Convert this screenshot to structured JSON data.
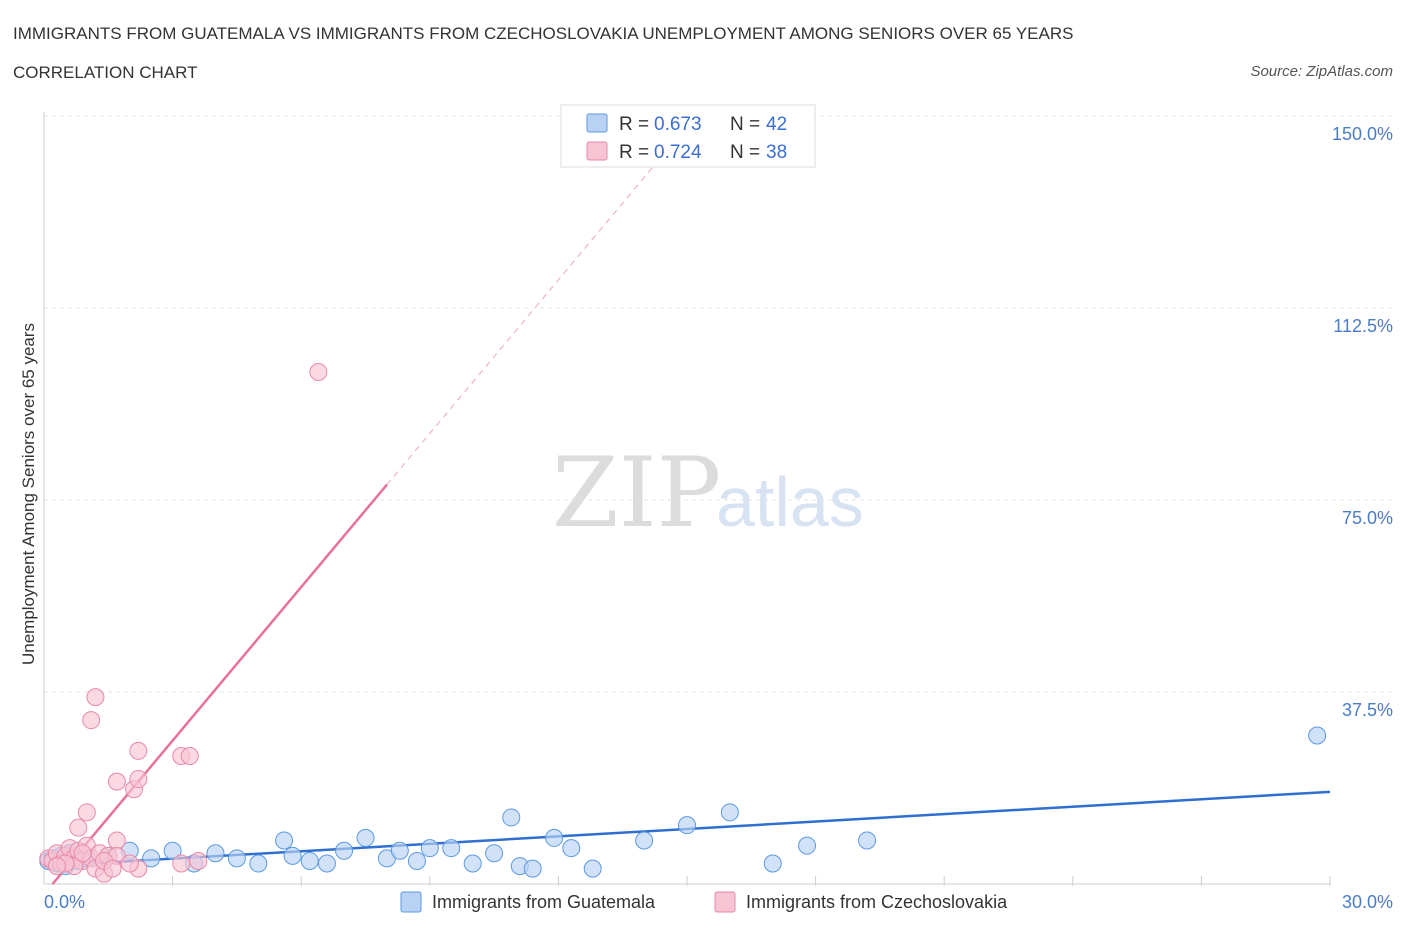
{
  "title": "IMMIGRANTS FROM GUATEMALA VS IMMIGRANTS FROM CZECHOSLOVAKIA UNEMPLOYMENT AMONG SENIORS OVER 65 YEARS",
  "subtitle": "CORRELATION CHART",
  "source": "Source: ZipAtlas.com",
  "watermark": {
    "zip": "ZIP",
    "atlas": "atlas"
  },
  "legend": {
    "r_label": "R =",
    "n_label": "N =",
    "series": [
      {
        "r": "0.673",
        "n": "42"
      },
      {
        "r": "0.724",
        "n": "38"
      }
    ]
  },
  "chart_data": {
    "type": "scatter",
    "title": "IMMIGRANTS FROM GUATEMALA VS IMMIGRANTS FROM CZECHOSLOVAKIA UNEMPLOYMENT AMONG SENIORS OVER 65 YEARS",
    "xlabel": "",
    "ylabel": "Unemployment Among Seniors over 65 years",
    "xlim": [
      0,
      30
    ],
    "ylim": [
      0,
      150
    ],
    "x_tick_labels": [
      "0.0%",
      "30.0%"
    ],
    "y_ticks": [
      37.5,
      75,
      112.5,
      150
    ],
    "y_tick_labels": [
      "37.5%",
      "75.0%",
      "112.5%",
      "150.0%"
    ],
    "grid": true,
    "legend_position": "top-center",
    "series": [
      {
        "name": "Immigrants from Guatemala",
        "color": "#5b9ae0",
        "fill": "#b8d2f4",
        "points": [
          [
            0.1,
            4.5
          ],
          [
            0.2,
            5.0
          ],
          [
            0.3,
            4.0
          ],
          [
            0.4,
            5.5
          ],
          [
            0.5,
            3.5
          ],
          [
            0.6,
            6.0
          ],
          [
            0.8,
            4.5
          ],
          [
            1.0,
            5.0
          ],
          [
            1.5,
            5.5
          ],
          [
            2.0,
            6.5
          ],
          [
            2.5,
            5.0
          ],
          [
            3.0,
            6.5
          ],
          [
            3.5,
            4.0
          ],
          [
            4.0,
            6.0
          ],
          [
            4.5,
            5.0
          ],
          [
            5.0,
            4.0
          ],
          [
            5.6,
            8.5
          ],
          [
            5.8,
            5.5
          ],
          [
            6.2,
            4.5
          ],
          [
            6.6,
            4.0
          ],
          [
            7.0,
            6.5
          ],
          [
            7.5,
            9.0
          ],
          [
            8.0,
            5.0
          ],
          [
            8.3,
            6.5
          ],
          [
            8.7,
            4.5
          ],
          [
            9.0,
            7.0
          ],
          [
            9.5,
            7.0
          ],
          [
            10.0,
            4.0
          ],
          [
            10.5,
            6.0
          ],
          [
            10.9,
            13.0
          ],
          [
            11.1,
            3.5
          ],
          [
            11.4,
            3.0
          ],
          [
            11.9,
            9.0
          ],
          [
            12.3,
            7.0
          ],
          [
            12.8,
            3.0
          ],
          [
            14.0,
            8.5
          ],
          [
            15.0,
            11.5
          ],
          [
            16.0,
            14.0
          ],
          [
            17.0,
            4.0
          ],
          [
            17.8,
            7.5
          ],
          [
            19.2,
            8.5
          ],
          [
            29.7,
            29.0
          ]
        ],
        "trend": {
          "x1": 0,
          "y1": 3.5,
          "x2": 30,
          "y2": 18
        }
      },
      {
        "name": "Immigrants from Czechoslovakia",
        "color": "#e88aa8",
        "fill": "#f7c4d4",
        "points": [
          [
            0.1,
            5.0
          ],
          [
            0.2,
            4.5
          ],
          [
            0.3,
            6.0
          ],
          [
            0.4,
            4.0
          ],
          [
            0.5,
            5.5
          ],
          [
            0.6,
            7.0
          ],
          [
            0.7,
            5.0
          ],
          [
            0.8,
            6.5
          ],
          [
            0.9,
            4.5
          ],
          [
            1.0,
            7.5
          ],
          [
            1.1,
            5.0
          ],
          [
            1.3,
            6.0
          ],
          [
            1.5,
            5.5
          ],
          [
            0.7,
            3.5
          ],
          [
            1.2,
            3.0
          ],
          [
            0.8,
            11.0
          ],
          [
            1.0,
            14.0
          ],
          [
            1.1,
            32.0
          ],
          [
            1.2,
            36.5
          ],
          [
            1.7,
            20.0
          ],
          [
            2.1,
            18.5
          ],
          [
            2.2,
            20.5
          ],
          [
            2.2,
            26.0
          ],
          [
            1.7,
            8.5
          ],
          [
            2.2,
            3.0
          ],
          [
            3.2,
            25.0
          ],
          [
            3.4,
            25.0
          ],
          [
            3.2,
            4.0
          ],
          [
            3.6,
            4.5
          ],
          [
            1.4,
            2.0
          ],
          [
            1.7,
            5.5
          ],
          [
            2.0,
            4.0
          ],
          [
            0.5,
            4.0
          ],
          [
            1.4,
            4.5
          ],
          [
            6.4,
            100.0
          ],
          [
            1.6,
            3.0
          ],
          [
            0.3,
            3.5
          ],
          [
            0.9,
            6.0
          ]
        ],
        "trend": {
          "x1": 0.2,
          "y1": 0,
          "x2": 8,
          "y2": 78
        },
        "trend_extension": {
          "x1": 8,
          "y1": 78,
          "x2": 14.4,
          "y2": 142
        }
      }
    ]
  }
}
